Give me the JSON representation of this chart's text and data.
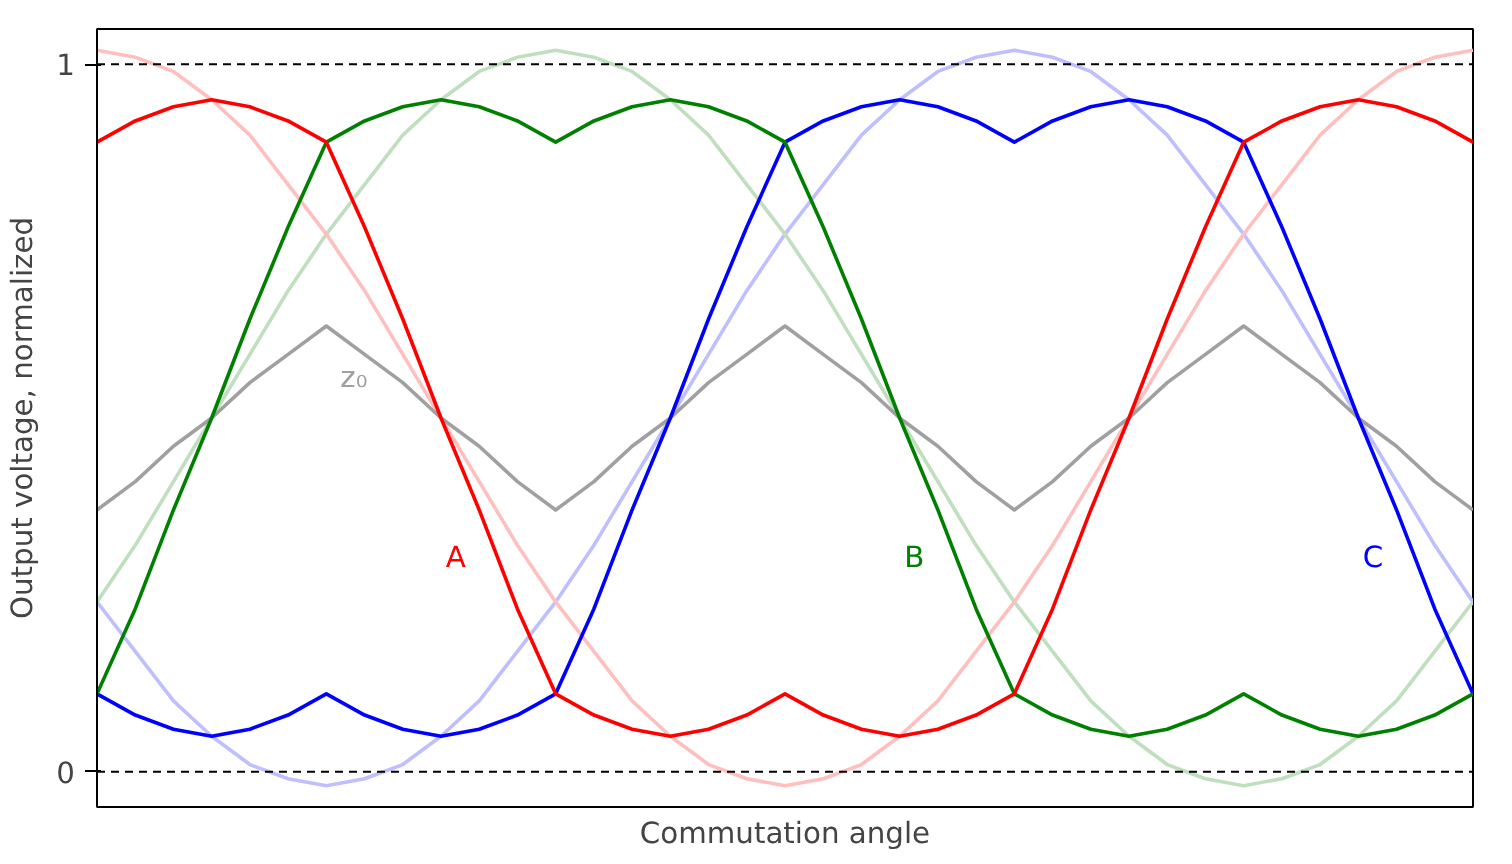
{
  "chart_data": {
    "type": "line",
    "xlabel": "Commutation angle",
    "ylabel": "Output voltage, normalized",
    "categories": [
      null,
      null,
      null,
      null,
      null,
      null,
      null,
      null,
      null,
      null,
      null,
      null,
      null,
      null,
      null,
      null,
      null,
      null,
      null,
      null,
      null,
      null,
      null,
      null,
      null,
      null,
      null,
      null,
      null,
      null,
      null,
      null,
      null,
      null,
      null,
      null,
      null
    ],
    "ylim": [
      -0.05,
      1.05
    ],
    "yticks": [
      0,
      1
    ],
    "tick_labels": "y",
    "grid": false,
    "line_style": "solid",
    "marker": "none",
    "series": [
      {
        "name": "A",
        "color": "#ff0000",
        "values": [
          0.89,
          0.92,
          0.94,
          0.95,
          0.94,
          0.92,
          0.89,
          0.77,
          0.64,
          0.5,
          0.37,
          0.23,
          0.11,
          0.08,
          0.06,
          0.05,
          0.06,
          0.08,
          0.11,
          0.08,
          0.06,
          0.05,
          0.06,
          0.08,
          0.11,
          0.23,
          0.37,
          0.5,
          0.64,
          0.77,
          0.89,
          0.92,
          0.94,
          0.95,
          0.94,
          0.92,
          0.89
        ]
      },
      {
        "name": "B",
        "color": "#008000",
        "values": [
          0.11,
          0.23,
          0.37,
          0.5,
          0.64,
          0.77,
          0.89,
          0.92,
          0.94,
          0.95,
          0.94,
          0.92,
          0.89,
          0.92,
          0.94,
          0.95,
          0.94,
          0.92,
          0.89,
          0.77,
          0.64,
          0.5,
          0.37,
          0.23,
          0.11,
          0.08,
          0.06,
          0.05,
          0.06,
          0.08,
          0.11,
          0.08,
          0.06,
          0.05,
          0.06,
          0.08,
          0.11
        ]
      },
      {
        "name": "C",
        "color": "#0000ff",
        "values": [
          0.11,
          0.08,
          0.06,
          0.05,
          0.06,
          0.08,
          0.11,
          0.08,
          0.06,
          0.05,
          0.06,
          0.08,
          0.11,
          0.23,
          0.37,
          0.5,
          0.64,
          0.77,
          0.89,
          0.92,
          0.94,
          0.95,
          0.94,
          0.92,
          0.89,
          0.92,
          0.94,
          0.95,
          0.94,
          0.92,
          0.89,
          0.77,
          0.64,
          0.5,
          0.37,
          0.23,
          0.11
        ]
      },
      {
        "name": "z₀",
        "color": "#a0a0a0",
        "values": [
          0.37,
          0.41,
          0.46,
          0.5,
          0.55,
          0.59,
          0.63,
          0.59,
          0.55,
          0.5,
          0.46,
          0.41,
          0.37,
          0.41,
          0.46,
          0.5,
          0.55,
          0.59,
          0.63,
          0.59,
          0.55,
          0.5,
          0.46,
          0.41,
          0.37,
          0.41,
          0.46,
          0.5,
          0.55,
          0.59,
          0.63,
          0.59,
          0.55,
          0.5,
          0.46,
          0.41,
          0.37
        ]
      },
      {
        "color": "#ffbfbf",
        "values": [
          1.02,
          1.01,
          0.99,
          0.95,
          0.9,
          0.83,
          0.76,
          0.68,
          0.59,
          0.5,
          0.41,
          0.32,
          0.24,
          0.17,
          0.1,
          0.05,
          0.01,
          -0.01,
          -0.02,
          -0.01,
          0.01,
          0.05,
          0.1,
          0.17,
          0.24,
          0.32,
          0.41,
          0.5,
          0.59,
          0.68,
          0.76,
          0.83,
          0.9,
          0.95,
          0.99,
          1.01,
          1.02
        ]
      },
      {
        "color": "#bfdfbf",
        "values": [
          0.24,
          0.32,
          0.41,
          0.5,
          0.59,
          0.68,
          0.76,
          0.83,
          0.9,
          0.95,
          0.99,
          1.01,
          1.02,
          1.01,
          0.99,
          0.95,
          0.9,
          0.83,
          0.76,
          0.68,
          0.59,
          0.5,
          0.41,
          0.32,
          0.24,
          0.17,
          0.1,
          0.05,
          0.01,
          -0.01,
          -0.02,
          -0.01,
          0.01,
          0.05,
          0.1,
          0.17,
          0.24
        ]
      },
      {
        "color": "#bfbfff",
        "values": [
          0.24,
          0.17,
          0.1,
          0.05,
          0.01,
          -0.01,
          -0.02,
          -0.01,
          0.01,
          0.05,
          0.1,
          0.17,
          0.24,
          0.32,
          0.41,
          0.5,
          0.59,
          0.68,
          0.76,
          0.83,
          0.9,
          0.95,
          0.99,
          1.01,
          1.02,
          1.01,
          0.99,
          0.95,
          0.9,
          0.83,
          0.76,
          0.68,
          0.59,
          0.5,
          0.41,
          0.32,
          0.24
        ]
      }
    ],
    "ref_lines": [
      {
        "axis": "y",
        "value": 0,
        "line_style": "dashed",
        "color": "#000000"
      },
      {
        "axis": "y",
        "value": 1,
        "line_style": "dashed",
        "color": "#000000"
      }
    ]
  }
}
